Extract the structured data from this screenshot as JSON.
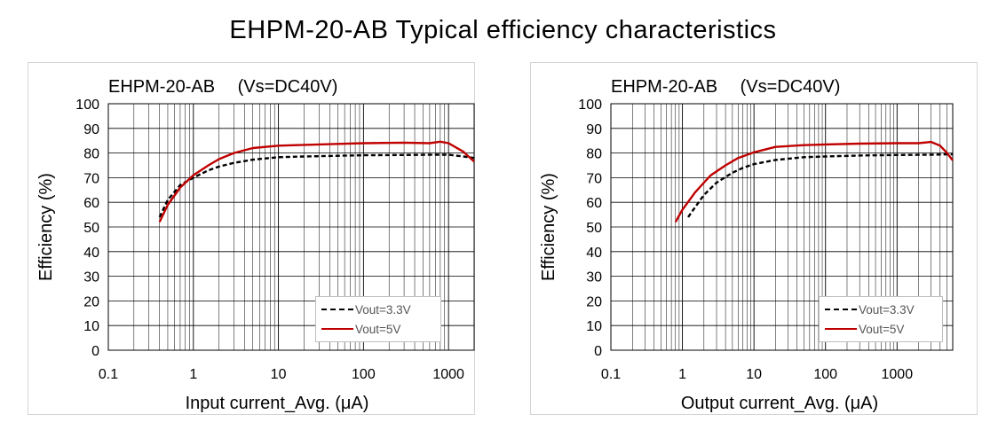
{
  "main_title": "EHPM-20-AB Typical efficiency characteristics",
  "chart_data": [
    {
      "type": "line",
      "title": "EHPM-20-AB　 (Vs=DC40V)",
      "xlabel": "Input current_Avg. (μA)",
      "ylabel": "Efficiency (%)",
      "x_scale": "log",
      "xlim": [
        0.1,
        2000
      ],
      "ylim": [
        0,
        100
      ],
      "x_ticks": [
        "0.1",
        "1",
        "10",
        "100",
        "1000"
      ],
      "y_ticks": [
        "0",
        "10",
        "20",
        "30",
        "40",
        "50",
        "60",
        "70",
        "80",
        "90",
        "100"
      ],
      "grid": true,
      "legend_position": "bottom-right",
      "series": [
        {
          "name": "Vout=3.3V",
          "color": "#000000",
          "style": "dashed",
          "points": [
            [
              0.4,
              54
            ],
            [
              0.5,
              61
            ],
            [
              0.7,
              67
            ],
            [
              1,
              70
            ],
            [
              1.5,
              73
            ],
            [
              2,
              74.5
            ],
            [
              3,
              76
            ],
            [
              5,
              77.3
            ],
            [
              10,
              78.3
            ],
            [
              20,
              78.6
            ],
            [
              50,
              78.9
            ],
            [
              100,
              79.1
            ],
            [
              300,
              79.2
            ],
            [
              700,
              79.3
            ],
            [
              1000,
              79.3
            ],
            [
              1500,
              78.6
            ],
            [
              2000,
              78
            ]
          ]
        },
        {
          "name": "Vout=5V",
          "color": "#c00000",
          "style": "solid",
          "points": [
            [
              0.4,
              52
            ],
            [
              0.5,
              59
            ],
            [
              0.7,
              66
            ],
            [
              1,
              71
            ],
            [
              1.5,
              75
            ],
            [
              2,
              77.5
            ],
            [
              3,
              80
            ],
            [
              5,
              82
            ],
            [
              10,
              83
            ],
            [
              20,
              83.3
            ],
            [
              50,
              83.7
            ],
            [
              100,
              84
            ],
            [
              300,
              84.2
            ],
            [
              600,
              84
            ],
            [
              800,
              84.6
            ],
            [
              1000,
              84
            ],
            [
              1500,
              80.5
            ],
            [
              2000,
              76.5
            ]
          ]
        }
      ]
    },
    {
      "type": "line",
      "title": "EHPM-20-AB　 (Vs=DC40V)",
      "xlabel": "Output current_Avg. (μA)",
      "ylabel": "Efficiency (%)",
      "x_scale": "log",
      "xlim": [
        0.1,
        6000
      ],
      "ylim": [
        0,
        100
      ],
      "x_ticks": [
        "0.1",
        "1",
        "10",
        "100",
        "1000"
      ],
      "y_ticks": [
        "0",
        "10",
        "20",
        "30",
        "40",
        "50",
        "60",
        "70",
        "80",
        "90",
        "100"
      ],
      "grid": true,
      "legend_position": "bottom-right",
      "series": [
        {
          "name": "Vout=3.3V",
          "color": "#000000",
          "style": "dashed",
          "points": [
            [
              1.2,
              54
            ],
            [
              1.5,
              58
            ],
            [
              2,
              63
            ],
            [
              3,
              68
            ],
            [
              5,
              72
            ],
            [
              7,
              74
            ],
            [
              10,
              75.5
            ],
            [
              20,
              77.2
            ],
            [
              50,
              78.3
            ],
            [
              100,
              78.6
            ],
            [
              300,
              79
            ],
            [
              1000,
              79.2
            ],
            [
              3000,
              79.3
            ],
            [
              6000,
              79.5
            ]
          ]
        },
        {
          "name": "Vout=5V",
          "color": "#c00000",
          "style": "solid",
          "points": [
            [
              0.8,
              52
            ],
            [
              1,
              57
            ],
            [
              1.5,
              64
            ],
            [
              2,
              68
            ],
            [
              2.5,
              71
            ],
            [
              4,
              75
            ],
            [
              6,
              78
            ],
            [
              10,
              80.3
            ],
            [
              20,
              82.5
            ],
            [
              50,
              83.2
            ],
            [
              100,
              83.5
            ],
            [
              300,
              83.8
            ],
            [
              1000,
              84
            ],
            [
              2000,
              84
            ],
            [
              3000,
              84.5
            ],
            [
              4000,
              83
            ],
            [
              5000,
              80
            ],
            [
              6000,
              77
            ]
          ]
        }
      ]
    }
  ]
}
